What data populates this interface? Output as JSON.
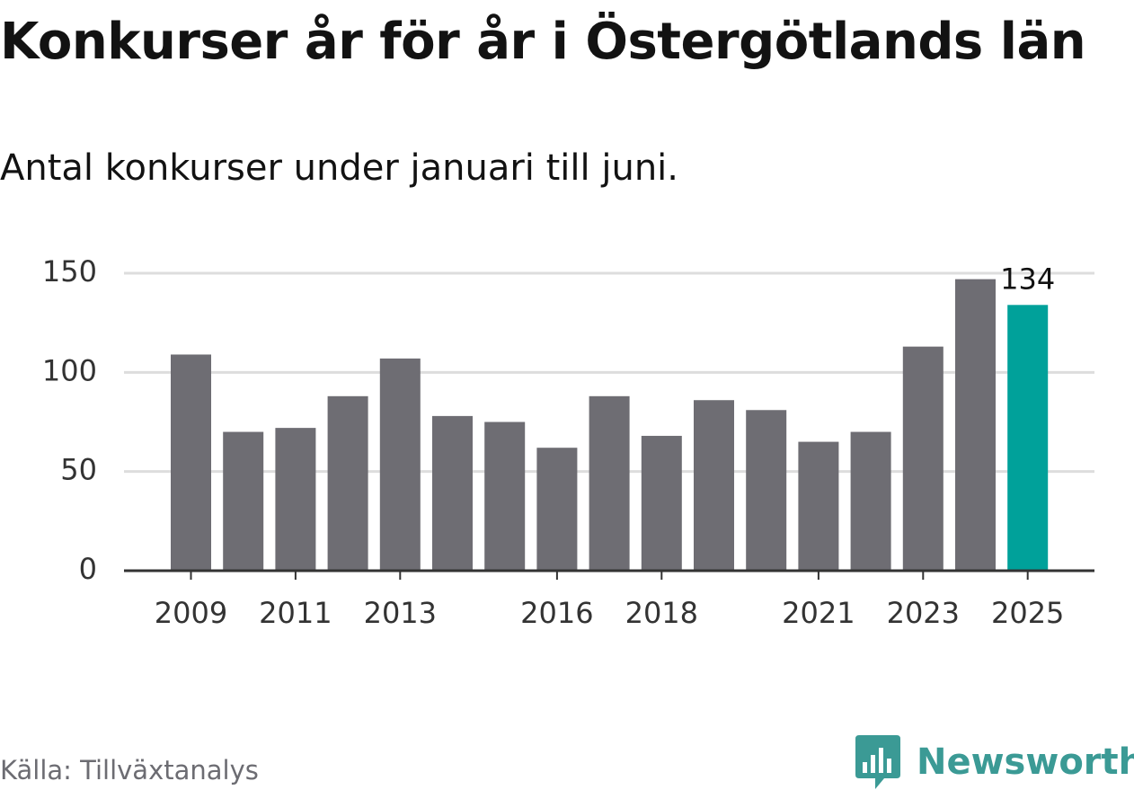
{
  "header": {
    "title": "Konkurser år för år i Östergötlands län",
    "subtitle": "Antal konkurser under januari till juni."
  },
  "footer": {
    "source": "Källa: Tillväxtanalys",
    "brand": "Newsworthy",
    "brand_icon": "bar-chart-bubble-icon"
  },
  "colors": {
    "bar": "#6e6d73",
    "highlight": "#00a19a",
    "brand": "#3b9a95",
    "grid": "#dddddd",
    "axis": "#333333",
    "source_text": "#6c6c72"
  },
  "chart_data": {
    "type": "bar",
    "categories": [
      "2009",
      "2010",
      "2011",
      "2012",
      "2013",
      "2014",
      "2015",
      "2016",
      "2017",
      "2018",
      "2019",
      "2020",
      "2021",
      "2022",
      "2023",
      "2024",
      "2025"
    ],
    "values": [
      109,
      70,
      72,
      88,
      107,
      78,
      75,
      62,
      88,
      68,
      86,
      81,
      65,
      70,
      113,
      147,
      134
    ],
    "x_tick_labels": [
      "2009",
      "2011",
      "2013",
      "2016",
      "2018",
      "2021",
      "2023",
      "2025"
    ],
    "y_ticks": [
      0,
      50,
      100,
      150
    ],
    "ylim": [
      0,
      150
    ],
    "highlight_category": "2025",
    "data_labels": [
      {
        "category": "2025",
        "text": "134"
      }
    ],
    "grid": true,
    "legend": "none",
    "title": "Konkurser år för år i Östergötlands län",
    "subtitle": "Antal konkurser under januari till juni.",
    "xlabel": "",
    "ylabel": ""
  }
}
